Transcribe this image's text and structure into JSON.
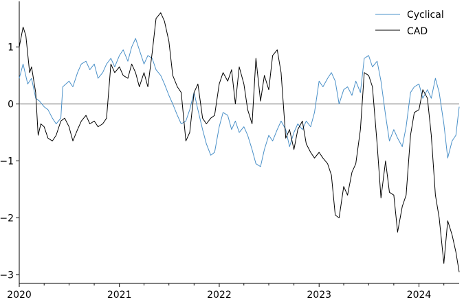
{
  "chart_data": {
    "type": "line",
    "title": "",
    "xlabel": "",
    "ylabel": "",
    "xlim": [
      "2020-01-01",
      "2024-05-27"
    ],
    "ylim": [
      -3.15,
      1.8
    ],
    "x_ticks": [
      {
        "date": "2020-01-01",
        "label": "2020"
      },
      {
        "date": "2021-01-01",
        "label": "2021"
      },
      {
        "date": "2022-01-01",
        "label": "2022"
      },
      {
        "date": "2023-01-01",
        "label": "2023"
      },
      {
        "date": "2024-01-01",
        "label": "2024"
      }
    ],
    "y_ticks": [
      {
        "value": 1,
        "label": "1"
      },
      {
        "value": 0,
        "label": "0"
      },
      {
        "value": -1,
        "label": "−1"
      },
      {
        "value": -2,
        "label": "−2"
      },
      {
        "value": -3,
        "label": "−3"
      }
    ],
    "zero_line": true,
    "grid": false,
    "legend_position": "top-right",
    "series": [
      {
        "name": "Cyclical",
        "color": "#4a90c8",
        "points": [
          [
            "2020-01-01",
            0.45
          ],
          [
            "2020-01-15",
            0.7
          ],
          [
            "2020-02-01",
            0.35
          ],
          [
            "2020-02-15",
            0.45
          ],
          [
            "2020-03-01",
            0.1
          ],
          [
            "2020-03-15",
            0.05
          ],
          [
            "2020-04-01",
            -0.05
          ],
          [
            "2020-04-15",
            -0.1
          ],
          [
            "2020-05-01",
            -0.25
          ],
          [
            "2020-05-15",
            -0.35
          ],
          [
            "2020-06-01",
            -0.25
          ],
          [
            "2020-06-08",
            0.3
          ],
          [
            "2020-07-01",
            0.4
          ],
          [
            "2020-07-15",
            0.3
          ],
          [
            "2020-08-01",
            0.55
          ],
          [
            "2020-08-15",
            0.7
          ],
          [
            "2020-09-01",
            0.75
          ],
          [
            "2020-09-15",
            0.6
          ],
          [
            "2020-10-01",
            0.7
          ],
          [
            "2020-10-15",
            0.45
          ],
          [
            "2020-11-01",
            0.55
          ],
          [
            "2020-11-15",
            0.7
          ],
          [
            "2020-12-01",
            0.8
          ],
          [
            "2020-12-15",
            0.65
          ],
          [
            "2021-01-01",
            0.85
          ],
          [
            "2021-01-15",
            0.95
          ],
          [
            "2021-02-01",
            0.75
          ],
          [
            "2021-02-15",
            1.0
          ],
          [
            "2021-03-01",
            1.15
          ],
          [
            "2021-03-15",
            0.95
          ],
          [
            "2021-04-01",
            0.7
          ],
          [
            "2021-04-15",
            0.85
          ],
          [
            "2021-05-01",
            0.8
          ],
          [
            "2021-05-15",
            0.6
          ],
          [
            "2021-06-01",
            0.5
          ],
          [
            "2021-06-15",
            0.35
          ],
          [
            "2021-07-01",
            0.15
          ],
          [
            "2021-07-15",
            0.0
          ],
          [
            "2021-08-01",
            -0.2
          ],
          [
            "2021-08-15",
            -0.35
          ],
          [
            "2021-09-01",
            -0.3
          ],
          [
            "2021-09-15",
            -0.1
          ],
          [
            "2021-10-01",
            0.2
          ],
          [
            "2021-10-15",
            -0.1
          ],
          [
            "2021-11-01",
            -0.45
          ],
          [
            "2021-11-15",
            -0.7
          ],
          [
            "2021-12-01",
            -0.9
          ],
          [
            "2021-12-15",
            -0.85
          ],
          [
            "2022-01-01",
            -0.4
          ],
          [
            "2022-01-15",
            -0.15
          ],
          [
            "2022-02-01",
            -0.2
          ],
          [
            "2022-02-15",
            -0.45
          ],
          [
            "2022-03-01",
            -0.3
          ],
          [
            "2022-03-15",
            -0.5
          ],
          [
            "2022-04-01",
            -0.4
          ],
          [
            "2022-04-15",
            -0.55
          ],
          [
            "2022-05-01",
            -0.8
          ],
          [
            "2022-05-15",
            -1.05
          ],
          [
            "2022-06-01",
            -1.1
          ],
          [
            "2022-06-15",
            -0.8
          ],
          [
            "2022-07-01",
            -0.55
          ],
          [
            "2022-07-15",
            -0.65
          ],
          [
            "2022-08-01",
            -0.45
          ],
          [
            "2022-08-15",
            -0.3
          ],
          [
            "2022-09-01",
            -0.45
          ],
          [
            "2022-09-15",
            -0.75
          ],
          [
            "2022-10-01",
            -0.5
          ],
          [
            "2022-10-15",
            -0.35
          ],
          [
            "2022-11-01",
            -0.45
          ],
          [
            "2022-11-15",
            -0.3
          ],
          [
            "2022-12-01",
            -0.4
          ],
          [
            "2022-12-15",
            -0.15
          ],
          [
            "2023-01-01",
            0.4
          ],
          [
            "2023-01-15",
            0.3
          ],
          [
            "2023-02-01",
            0.45
          ],
          [
            "2023-02-15",
            0.55
          ],
          [
            "2023-03-01",
            0.4
          ],
          [
            "2023-03-15",
            0.0
          ],
          [
            "2023-04-01",
            0.25
          ],
          [
            "2023-04-15",
            0.3
          ],
          [
            "2023-05-01",
            0.15
          ],
          [
            "2023-05-15",
            0.4
          ],
          [
            "2023-06-01",
            0.2
          ],
          [
            "2023-06-15",
            0.8
          ],
          [
            "2023-07-01",
            0.85
          ],
          [
            "2023-07-15",
            0.65
          ],
          [
            "2023-08-01",
            0.75
          ],
          [
            "2023-08-15",
            0.4
          ],
          [
            "2023-09-01",
            -0.2
          ],
          [
            "2023-09-15",
            -0.65
          ],
          [
            "2023-10-01",
            -0.45
          ],
          [
            "2023-10-15",
            -0.6
          ],
          [
            "2023-11-01",
            -0.75
          ],
          [
            "2023-11-15",
            -0.4
          ],
          [
            "2023-12-01",
            0.2
          ],
          [
            "2023-12-15",
            0.3
          ],
          [
            "2024-01-01",
            0.35
          ],
          [
            "2024-01-15",
            0.1
          ],
          [
            "2024-02-01",
            0.25
          ],
          [
            "2024-02-15",
            0.1
          ],
          [
            "2024-03-01",
            0.45
          ],
          [
            "2024-03-15",
            0.2
          ],
          [
            "2024-04-01",
            -0.35
          ],
          [
            "2024-04-15",
            -0.95
          ],
          [
            "2024-05-01",
            -0.65
          ],
          [
            "2024-05-15",
            -0.55
          ],
          [
            "2024-05-27",
            -0.05
          ]
        ]
      },
      {
        "name": "CAD",
        "color": "#000000",
        "points": [
          [
            "2020-01-01",
            1.0
          ],
          [
            "2020-01-15",
            1.35
          ],
          [
            "2020-01-25",
            1.2
          ],
          [
            "2020-02-08",
            0.55
          ],
          [
            "2020-02-15",
            0.65
          ],
          [
            "2020-03-01",
            0.2
          ],
          [
            "2020-03-10",
            -0.55
          ],
          [
            "2020-03-20",
            -0.35
          ],
          [
            "2020-04-01",
            -0.4
          ],
          [
            "2020-04-15",
            -0.6
          ],
          [
            "2020-05-01",
            -0.65
          ],
          [
            "2020-05-15",
            -0.55
          ],
          [
            "2020-06-01",
            -0.3
          ],
          [
            "2020-06-15",
            -0.25
          ],
          [
            "2020-07-01",
            -0.4
          ],
          [
            "2020-07-15",
            -0.65
          ],
          [
            "2020-08-01",
            -0.45
          ],
          [
            "2020-08-15",
            -0.3
          ],
          [
            "2020-09-01",
            -0.2
          ],
          [
            "2020-09-15",
            -0.35
          ],
          [
            "2020-10-01",
            -0.3
          ],
          [
            "2020-10-15",
            -0.4
          ],
          [
            "2020-11-01",
            -0.35
          ],
          [
            "2020-11-15",
            -0.25
          ],
          [
            "2020-12-01",
            0.7
          ],
          [
            "2020-12-15",
            0.55
          ],
          [
            "2021-01-01",
            0.65
          ],
          [
            "2021-01-15",
            0.5
          ],
          [
            "2021-02-01",
            0.45
          ],
          [
            "2021-02-15",
            0.7
          ],
          [
            "2021-03-01",
            0.55
          ],
          [
            "2021-03-15",
            0.3
          ],
          [
            "2021-04-01",
            0.55
          ],
          [
            "2021-04-15",
            0.3
          ],
          [
            "2021-05-01",
            0.9
          ],
          [
            "2021-05-15",
            1.5
          ],
          [
            "2021-06-01",
            1.6
          ],
          [
            "2021-06-15",
            1.45
          ],
          [
            "2021-07-01",
            1.1
          ],
          [
            "2021-07-15",
            0.5
          ],
          [
            "2021-08-01",
            0.3
          ],
          [
            "2021-08-15",
            0.2
          ],
          [
            "2021-09-01",
            -0.65
          ],
          [
            "2021-09-15",
            -0.5
          ],
          [
            "2021-10-01",
            0.2
          ],
          [
            "2021-10-15",
            0.35
          ],
          [
            "2021-11-01",
            -0.25
          ],
          [
            "2021-11-15",
            -0.35
          ],
          [
            "2021-12-01",
            -0.25
          ],
          [
            "2021-12-15",
            -0.2
          ],
          [
            "2022-01-01",
            0.35
          ],
          [
            "2022-01-15",
            0.55
          ],
          [
            "2022-02-01",
            0.4
          ],
          [
            "2022-02-15",
            0.6
          ],
          [
            "2022-03-01",
            0.0
          ],
          [
            "2022-03-15",
            0.65
          ],
          [
            "2022-04-01",
            0.35
          ],
          [
            "2022-04-15",
            -0.1
          ],
          [
            "2022-05-01",
            -0.35
          ],
          [
            "2022-05-15",
            0.8
          ],
          [
            "2022-06-01",
            0.05
          ],
          [
            "2022-06-15",
            0.5
          ],
          [
            "2022-07-01",
            0.25
          ],
          [
            "2022-07-15",
            0.85
          ],
          [
            "2022-08-01",
            0.95
          ],
          [
            "2022-08-15",
            0.55
          ],
          [
            "2022-09-01",
            -0.6
          ],
          [
            "2022-09-15",
            -0.45
          ],
          [
            "2022-10-01",
            -0.8
          ],
          [
            "2022-10-15",
            -0.45
          ],
          [
            "2022-11-01",
            -0.3
          ],
          [
            "2022-11-15",
            -0.7
          ],
          [
            "2022-12-01",
            -0.85
          ],
          [
            "2022-12-15",
            -0.95
          ],
          [
            "2023-01-01",
            -0.85
          ],
          [
            "2023-01-15",
            -0.95
          ],
          [
            "2023-02-01",
            -1.05
          ],
          [
            "2023-02-15",
            -1.25
          ],
          [
            "2023-03-01",
            -1.95
          ],
          [
            "2023-03-15",
            -2.0
          ],
          [
            "2023-04-01",
            -1.45
          ],
          [
            "2023-04-15",
            -1.6
          ],
          [
            "2023-05-01",
            -1.2
          ],
          [
            "2023-05-15",
            -1.05
          ],
          [
            "2023-06-01",
            -0.45
          ],
          [
            "2023-06-15",
            0.55
          ],
          [
            "2023-07-01",
            0.5
          ],
          [
            "2023-07-15",
            0.3
          ],
          [
            "2023-08-01",
            -0.7
          ],
          [
            "2023-08-15",
            -1.65
          ],
          [
            "2023-09-01",
            -1.0
          ],
          [
            "2023-09-15",
            -1.55
          ],
          [
            "2023-10-01",
            -1.6
          ],
          [
            "2023-10-15",
            -2.25
          ],
          [
            "2023-11-01",
            -1.8
          ],
          [
            "2023-11-15",
            -1.6
          ],
          [
            "2023-12-01",
            -0.55
          ],
          [
            "2023-12-15",
            -0.15
          ],
          [
            "2024-01-01",
            -0.1
          ],
          [
            "2024-01-15",
            0.25
          ],
          [
            "2024-02-01",
            0.1
          ],
          [
            "2024-02-15",
            -0.55
          ],
          [
            "2024-03-01",
            -1.6
          ],
          [
            "2024-03-15",
            -2.0
          ],
          [
            "2024-04-01",
            -2.8
          ],
          [
            "2024-04-15",
            -2.05
          ],
          [
            "2024-05-01",
            -2.3
          ],
          [
            "2024-05-15",
            -2.6
          ],
          [
            "2024-05-27",
            -2.95
          ]
        ]
      }
    ]
  }
}
